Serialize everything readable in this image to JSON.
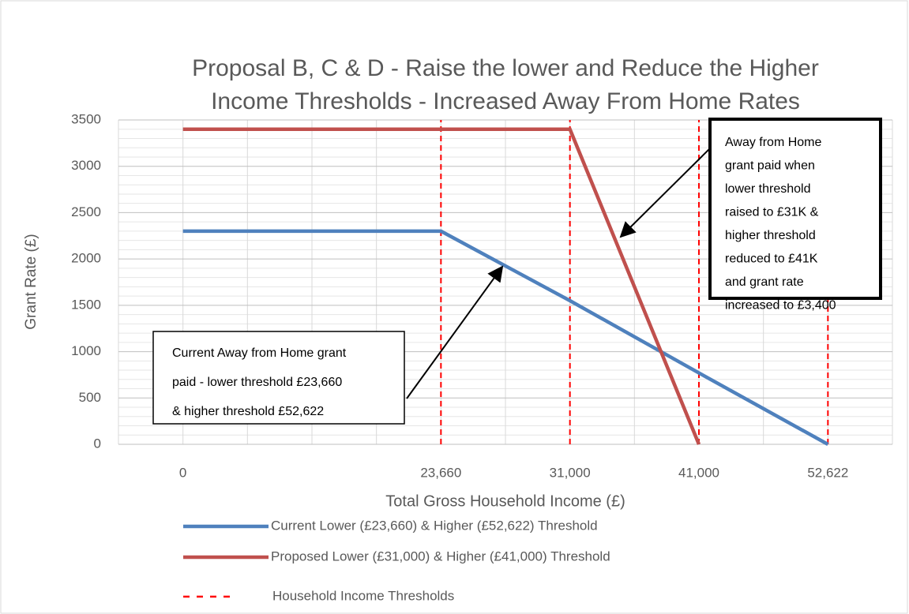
{
  "chart_data": {
    "type": "line",
    "title": [
      "Proposal B, C & D - Raise the lower and Reduce the Higher",
      "Income Thresholds - Increased Away From Home Rates"
    ],
    "x_label": "Total Gross Household Income (£)",
    "y_label": "Grant Rate (£)",
    "categories": [
      "0",
      null,
      "23,660",
      "31,000",
      "41,000",
      "52,622"
    ],
    "series": [
      {
        "name": "Current Lower (£23,660) & Higher (£52,622) Threshold",
        "color": "#4f81bd",
        "values": [
          2300,
          2300,
          2300,
          1550,
          770,
          0
        ]
      },
      {
        "name": "Proposed Lower (£31,000) &  Higher (£41,000) Threshold",
        "color": "#c0504d",
        "values": [
          3400,
          3400,
          3400,
          3400,
          0,
          null
        ]
      },
      {
        "name": "Household Income Thresholds",
        "color": "#ff0000",
        "style": "dashed-vertical",
        "values": [
          null,
          null,
          3500,
          3500,
          3500,
          3500
        ]
      }
    ],
    "ylim": [
      0,
      3500
    ],
    "yticks": [
      0,
      500,
      1000,
      1500,
      2000,
      2500,
      3000,
      3500
    ],
    "grid": true,
    "annotations": [
      {
        "lines": [
          "Away from Home",
          "grant paid when",
          "lower threshold",
          "raised to £31K &",
          "higher threshold",
          "reduced to £41K",
          "and grant rate",
          "increased to £3,400"
        ]
      },
      {
        "lines": [
          "Current Away from Home grant",
          "paid - lower threshold £23,660",
          "& higher threshold £52,622"
        ]
      }
    ]
  }
}
